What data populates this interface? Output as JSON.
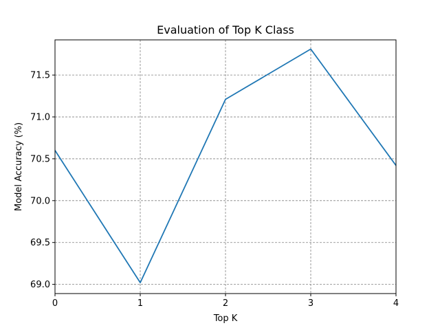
{
  "chart_data": {
    "type": "line",
    "title": "Evaluation of Top K Class",
    "xlabel": "Top K",
    "ylabel": "Model Accuracy (%)",
    "x": [
      0,
      1,
      2,
      3,
      4
    ],
    "xticks": [
      "0",
      "1",
      "2",
      "3",
      "4"
    ],
    "xlim": [
      0,
      4
    ],
    "yticks": [
      "69.0",
      "69.5",
      "70.0",
      "70.5",
      "71.0",
      "71.5"
    ],
    "ylim": [
      68.89,
      71.92
    ],
    "grid": true,
    "series": [
      {
        "values": [
          70.6,
          69.02,
          71.21,
          71.81,
          70.42
        ],
        "color": "#1f77b4"
      }
    ]
  }
}
